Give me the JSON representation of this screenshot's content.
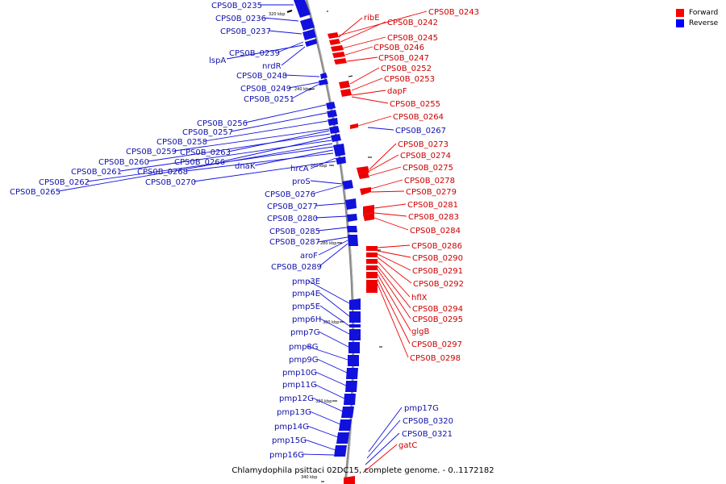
{
  "caption": "Chlamydophila psittaci 02DC15, complete genome. - 0..1172182",
  "legend": [
    {
      "label": "Forward",
      "color": "#ff0000"
    },
    {
      "label": "Reverse",
      "color": "#0000ff"
    }
  ],
  "colors": {
    "forward": "#ee0000",
    "reverse": "#1111dd",
    "backbone": "#777777"
  },
  "ticks": [
    "220 kbp",
    "240 kbp",
    "260 kbp",
    "280 kbp",
    "300 kbp",
    "320 kbp",
    "340 kbp"
  ],
  "reverse_labels": [
    "CPS0B_0235",
    "CPS0B_0236",
    "CPS0B_0237",
    "CPS0B_0239",
    "lspA",
    "nrdR",
    "CPS0B_0248",
    "CPS0B_0249",
    "CPS0B_0251",
    "CPS0B_0256",
    "CPS0B_0257",
    "CPS0B_0258",
    "CPS0B_0259",
    "CPS0B_0263",
    "CPS0B_0260",
    "CPS0B_0266",
    "dnaK",
    "CPS0B_0261",
    "CPS0B_0268",
    "CPS0B_0262",
    "CPS0B_0270",
    "CPS0B_0265",
    "hrcA",
    "proS",
    "CPS0B_0276",
    "CPS0B_0277",
    "CPS0B_0280",
    "CPS0B_0285",
    "CPS0B_0287",
    "aroF",
    "CPS0B_0289",
    "pmp3E",
    "pmp4E",
    "pmp5E",
    "pmp6H",
    "pmp7G",
    "pmp8G",
    "pmp9G",
    "pmp10G",
    "pmp11G",
    "pmp12G",
    "pmp13G",
    "pmp14G",
    "pmp15G",
    "pmp16G",
    "CPS0B_0267",
    "pmp17G",
    "CPS0B_0320",
    "CPS0B_0321"
  ],
  "forward_labels": [
    "CPS0B_0243",
    "ribE",
    "CPS0B_0242",
    "CPS0B_0245",
    "CPS0B_0246",
    "CPS0B_0247",
    "CPS0B_0252",
    "CPS0B_0253",
    "dapF",
    "CPS0B_0255",
    "CPS0B_0264",
    "CPS0B_0273",
    "CPS0B_0274",
    "CPS0B_0275",
    "CPS0B_0278",
    "CPS0B_0279",
    "CPS0B_0281",
    "CPS0B_0283",
    "CPS0B_0284",
    "CPS0B_0286",
    "CPS0B_0290",
    "CPS0B_0291",
    "CPS0B_0292",
    "hflX",
    "CPS0B_0294",
    "CPS0B_0295",
    "glgB",
    "CPS0B_0297",
    "CPS0B_0298",
    "gatC"
  ]
}
